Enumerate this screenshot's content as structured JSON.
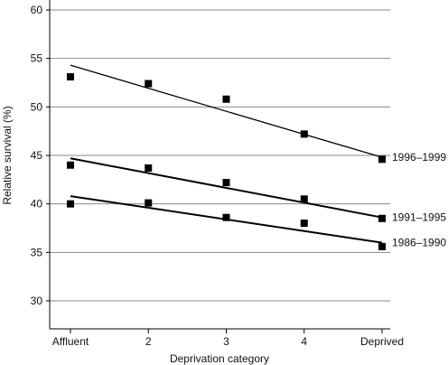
{
  "chart_data": {
    "type": "scatter",
    "title": "",
    "xlabel": "Deprivation category",
    "ylabel": "Relative survival (%)",
    "categories": [
      "Affluent",
      "2",
      "3",
      "4",
      "Deprived"
    ],
    "ylim": [
      30,
      60
    ],
    "yticks": [
      30,
      35,
      40,
      45,
      50,
      55,
      60
    ],
    "grid": true,
    "series": [
      {
        "name": "1996–1999",
        "values": [
          53.1,
          52.4,
          50.8,
          47.2,
          44.6
        ],
        "trend": [
          54.3,
          44.8
        ]
      },
      {
        "name": "1991–1995",
        "values": [
          44.0,
          43.7,
          42.2,
          40.5,
          38.5
        ],
        "trend": [
          44.7,
          38.6
        ]
      },
      {
        "name": "1986–1990",
        "values": [
          40.0,
          40.1,
          38.6,
          38.0,
          35.6
        ],
        "trend": [
          40.8,
          36.0
        ]
      }
    ]
  }
}
